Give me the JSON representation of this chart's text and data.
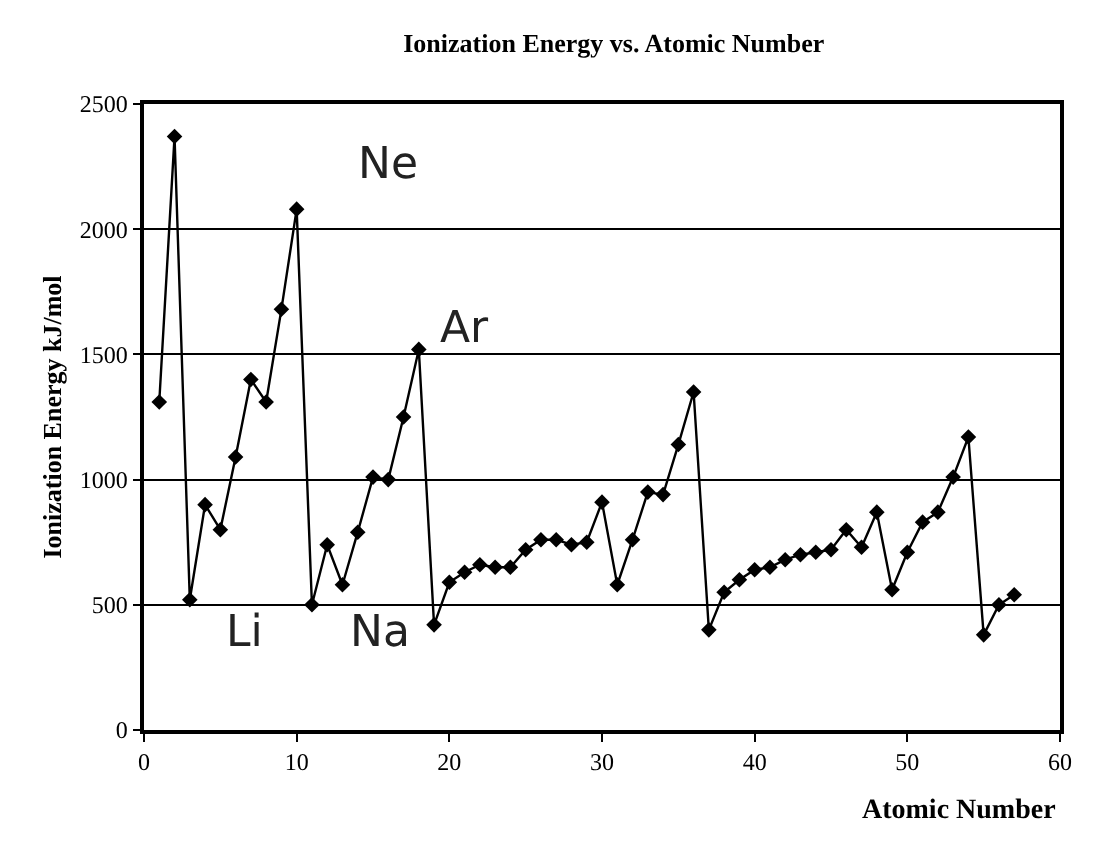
{
  "chart_data": {
    "type": "line",
    "title": "Ionization Energy vs. Atomic Number",
    "xlabel": "Atomic Number",
    "ylabel": "Ionization Energy kJ/mol",
    "x": [
      1,
      2,
      3,
      4,
      5,
      6,
      7,
      8,
      9,
      10,
      11,
      12,
      13,
      14,
      15,
      16,
      17,
      18,
      19,
      20,
      21,
      22,
      23,
      24,
      25,
      26,
      27,
      28,
      29,
      30,
      31,
      32,
      33,
      34,
      35,
      36,
      37,
      38,
      39,
      40,
      41,
      42,
      43,
      44,
      45,
      46,
      47,
      48,
      49,
      50,
      51,
      52,
      53,
      54,
      55,
      56,
      57
    ],
    "series": [
      {
        "color": "#000000",
        "values": [
          1310,
          2370,
          520,
          900,
          800,
          1090,
          1400,
          1310,
          1680,
          2080,
          500,
          740,
          580,
          790,
          1010,
          1000,
          1250,
          1520,
          420,
          590,
          630,
          660,
          650,
          650,
          720,
          760,
          760,
          740,
          750,
          910,
          580,
          760,
          950,
          940,
          1140,
          1350,
          400,
          550,
          600,
          640,
          650,
          680,
          700,
          710,
          720,
          800,
          730,
          870,
          560,
          710,
          830,
          870,
          1010,
          1170,
          380,
          500,
          540
        ]
      }
    ],
    "xlim": [
      0,
      60
    ],
    "ylim": [
      0,
      2500
    ],
    "xticks": [
      0,
      10,
      20,
      30,
      40,
      50,
      60
    ],
    "yticks": [
      0,
      500,
      1000,
      1500,
      2000,
      2500
    ],
    "grid": "y",
    "marker": "diamond",
    "line_style": "solid",
    "annotations": [
      "Ne",
      "Ar",
      "Li",
      "Na"
    ]
  }
}
